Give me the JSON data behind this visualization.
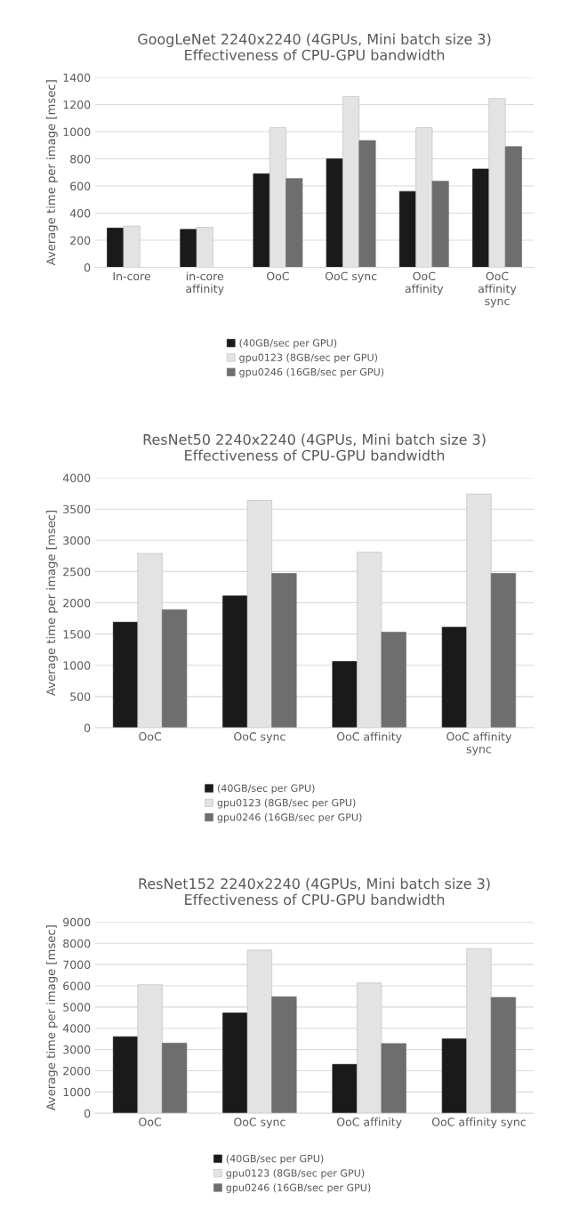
{
  "chart_data": [
    {
      "type": "bar",
      "title": "GoogLeNet 2240x2240 (4GPUs, Mini batch size 3)\nEffectiveness of CPU-GPU bandwidth",
      "ylabel": "Average time per image [msec]",
      "categories": [
        "In-core",
        "in-core\naffinity",
        "OoC",
        "OoC sync",
        "OoC\naffinity",
        "OoC\naffinity\nsync"
      ],
      "series": [
        {
          "name": "(40GB/sec per GPU)",
          "color": "#1a1a1a",
          "values": [
            290,
            280,
            690,
            800,
            560,
            725
          ]
        },
        {
          "name": "gpu0123 (8GB/sec per GPU)",
          "color": "#e3e3e3",
          "values": [
            305,
            295,
            1030,
            1260,
            1030,
            1245
          ]
        },
        {
          "name": "gpu0246 (16GB/sec per GPU)",
          "color": "#6e6e6e",
          "values": [
            null,
            null,
            655,
            935,
            635,
            890
          ]
        }
      ],
      "ylim": [
        0,
        1400
      ],
      "yticks": [
        0,
        200,
        400,
        600,
        800,
        1000,
        1200,
        1400
      ],
      "grid": "y",
      "legend": "bottom"
    },
    {
      "type": "bar",
      "title": "ResNet50 2240x2240 (4GPUs, Mini batch size 3)\nEffectiveness of CPU-GPU bandwidth",
      "ylabel": "Average time per image [msec]",
      "categories": [
        "OoC",
        "OoC sync",
        "OoC affinity",
        "OoC affinity\nsync"
      ],
      "series": [
        {
          "name": "(40GB/sec per GPU)",
          "color": "#1a1a1a",
          "values": [
            1690,
            2110,
            1060,
            1610
          ]
        },
        {
          "name": "gpu0123 (8GB/sec per GPU)",
          "color": "#e3e3e3",
          "values": [
            2790,
            3640,
            2810,
            3740
          ]
        },
        {
          "name": "gpu0246 (16GB/sec per GPU)",
          "color": "#6e6e6e",
          "values": [
            1890,
            2470,
            1530,
            2470
          ]
        }
      ],
      "ylim": [
        0,
        4000
      ],
      "yticks": [
        0,
        500,
        1000,
        1500,
        2000,
        2500,
        3000,
        3500,
        4000
      ],
      "grid": "y",
      "legend": "bottom"
    },
    {
      "type": "bar",
      "title": "ResNet152 2240x2240 (4GPUs, Mini batch size 3)\nEffectiveness of CPU-GPU bandwidth",
      "ylabel": "Average time per image [msec]",
      "categories": [
        "OoC",
        "OoC sync",
        "OoC affinity",
        "OoC affinity sync"
      ],
      "series": [
        {
          "name": "(40GB/sec per GPU)",
          "color": "#1a1a1a",
          "values": [
            3600,
            4720,
            2300,
            3500
          ]
        },
        {
          "name": "gpu0123 (8GB/sec per GPU)",
          "color": "#e3e3e3",
          "values": [
            6050,
            7680,
            6130,
            7750
          ]
        },
        {
          "name": "gpu0246 (16GB/sec per GPU)",
          "color": "#6e6e6e",
          "values": [
            3300,
            5480,
            3280,
            5450
          ]
        }
      ],
      "ylim": [
        0,
        9000
      ],
      "yticks": [
        0,
        1000,
        2000,
        3000,
        4000,
        5000,
        6000,
        7000,
        8000,
        9000
      ],
      "grid": "y",
      "legend": "bottom"
    }
  ]
}
